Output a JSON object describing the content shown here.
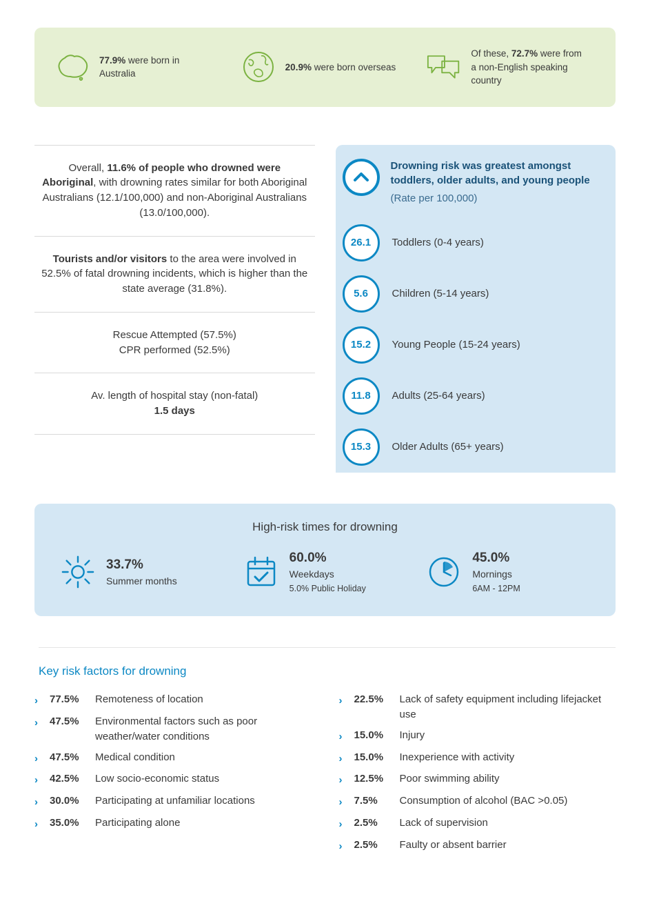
{
  "colors": {
    "green_bg": "#e6f0d3",
    "green_stroke": "#7bb241",
    "blue_bg": "#d4e7f4",
    "blue_stroke": "#0c88c4",
    "text_dark": "#3a3a3a",
    "text_navy": "#1a5278",
    "divider": "#d9d9d9"
  },
  "born_banner": [
    {
      "pct": "77.9%",
      "rest": " were born in Australia",
      "icon": "australia"
    },
    {
      "pct": "20.9%",
      "rest": " were born overseas",
      "icon": "globe"
    },
    {
      "pre": "Of these, ",
      "pct": "72.7%",
      "rest": " were from a non-English speaking country",
      "icon": "speech"
    }
  ],
  "facts": {
    "aboriginal": {
      "pre": "Overall, ",
      "bold": "11.6% of people who drowned were Aboriginal",
      "post": ", with drowning rates similar for both Aboriginal Australians (12.1/100,000) and non-Aboriginal Australians (13.0/100,000)."
    },
    "tourists": {
      "bold": "Tourists and/or visitors",
      "post": " to the area were involved in 52.5% of fatal drowning incidents, which is higher than the state average (31.8%)."
    },
    "rescue": {
      "l1": "Rescue Attempted (57.5%)",
      "l2": "CPR performed (52.5%)"
    },
    "hospital": {
      "l1": "Av. length of hospital stay (non-fatal)",
      "bold": "1.5 days"
    }
  },
  "risk_panel": {
    "heading_bold": "Drowning risk was greatest amongst toddlers, older adults, and young people",
    "heading_sub": "(Rate per 100,000)",
    "rows": [
      {
        "value": "26.1",
        "label": "Toddlers (0-4 years)"
      },
      {
        "value": "5.6",
        "label": "Children (5-14 years)"
      },
      {
        "value": "15.2",
        "label": "Young People (15-24 years)"
      },
      {
        "value": "11.8",
        "label": "Adults (25-64 years)"
      },
      {
        "value": "15.3",
        "label": "Older Adults (65+ years)"
      }
    ]
  },
  "high_risk": {
    "title": "High-risk times for drowning",
    "items": [
      {
        "pct": "33.7%",
        "label": "Summer months",
        "sub": "",
        "icon": "sun"
      },
      {
        "pct": "60.0%",
        "label": "Weekdays",
        "sub": "5.0% Public Holiday",
        "icon": "calendar"
      },
      {
        "pct": "45.0%",
        "label": "Mornings",
        "sub": "6AM - 12PM",
        "icon": "clock"
      }
    ]
  },
  "risk_factors": {
    "title": "Key risk factors for drowning",
    "left": [
      {
        "pct": "77.5%",
        "label": "Remoteness of location"
      },
      {
        "pct": "47.5%",
        "label": "Environmental factors such as poor weather/water conditions"
      },
      {
        "pct": "47.5%",
        "label": "Medical condition"
      },
      {
        "pct": "42.5%",
        "label": "Low socio-economic status"
      },
      {
        "pct": "30.0%",
        "label": "Participating at unfamiliar locations"
      },
      {
        "pct": "35.0%",
        "label": "Participating alone"
      }
    ],
    "right": [
      {
        "pct": "22.5%",
        "label": "Lack of safety equipment including lifejacket use"
      },
      {
        "pct": "15.0%",
        "label": "Injury"
      },
      {
        "pct": "15.0%",
        "label": "Inexperience with activity"
      },
      {
        "pct": "12.5%",
        "label": "Poor swimming ability"
      },
      {
        "pct": "7.5%",
        "label": "Consumption of alcohol (BAC >0.05)"
      },
      {
        "pct": "2.5%",
        "label": "Lack of supervision"
      },
      {
        "pct": "2.5%",
        "label": "Faulty or absent barrier"
      }
    ]
  }
}
